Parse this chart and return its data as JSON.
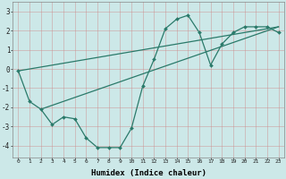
{
  "bg_color": "#cce8e8",
  "line_color": "#2a7a6a",
  "xlabel": "Humidex (Indice chaleur)",
  "xlim": [
    -0.5,
    23.5
  ],
  "ylim": [
    -4.6,
    3.5
  ],
  "yticks": [
    -4,
    -3,
    -2,
    -1,
    0,
    1,
    2,
    3
  ],
  "xticks": [
    0,
    1,
    2,
    3,
    4,
    5,
    6,
    7,
    8,
    9,
    10,
    11,
    12,
    13,
    14,
    15,
    16,
    17,
    18,
    19,
    20,
    21,
    22,
    23
  ],
  "main_x": [
    0,
    1,
    2,
    3,
    4,
    5,
    6,
    7,
    8,
    9,
    10,
    11,
    12,
    13,
    14,
    15,
    16,
    17,
    18,
    19,
    20,
    21,
    22,
    23
  ],
  "main_y": [
    -0.1,
    -1.7,
    -2.1,
    -2.9,
    -2.5,
    -2.6,
    -3.6,
    -4.1,
    -4.1,
    -4.1,
    -3.1,
    -0.9,
    0.5,
    2.1,
    2.6,
    2.8,
    1.9,
    0.2,
    1.3,
    1.9,
    2.2,
    2.2,
    2.2,
    1.9
  ],
  "line2_x": [
    0,
    23
  ],
  "line2_y": [
    -0.1,
    2.2
  ],
  "line3_x": [
    2,
    23
  ],
  "line3_y": [
    -2.1,
    2.2
  ]
}
